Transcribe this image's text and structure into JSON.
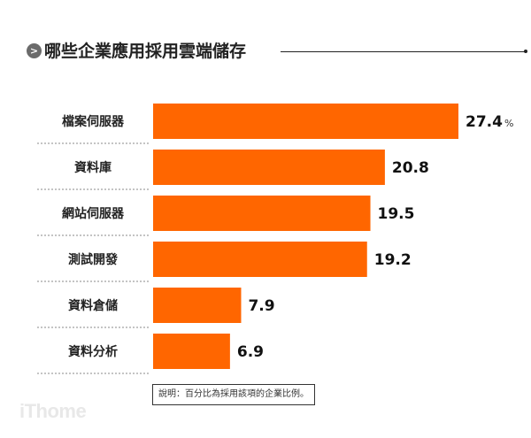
{
  "title": "哪些企業應用採用雲端儲存",
  "title_icon": "chevron-right-icon",
  "note": "說明：百分比為採用該項的企業比例。",
  "logo": "iThome",
  "colors": {
    "bar": "#ff6600",
    "text": "#222222",
    "divider": "#888888"
  },
  "chart_data": {
    "type": "bar",
    "orientation": "horizontal",
    "categories": [
      "檔案伺服器",
      "資料庫",
      "網站伺服器",
      "測試開發",
      "資料倉儲",
      "資料分析"
    ],
    "values": [
      27.4,
      20.8,
      19.5,
      19.2,
      7.9,
      6.9
    ],
    "value_labels": [
      "27.4",
      "20.8",
      "19.5",
      "19.2",
      "7.9",
      "6.9"
    ],
    "unit": "%",
    "title": "哪些企業應用採用雲端儲存",
    "xlabel": "",
    "ylabel": "",
    "grid": false
  }
}
